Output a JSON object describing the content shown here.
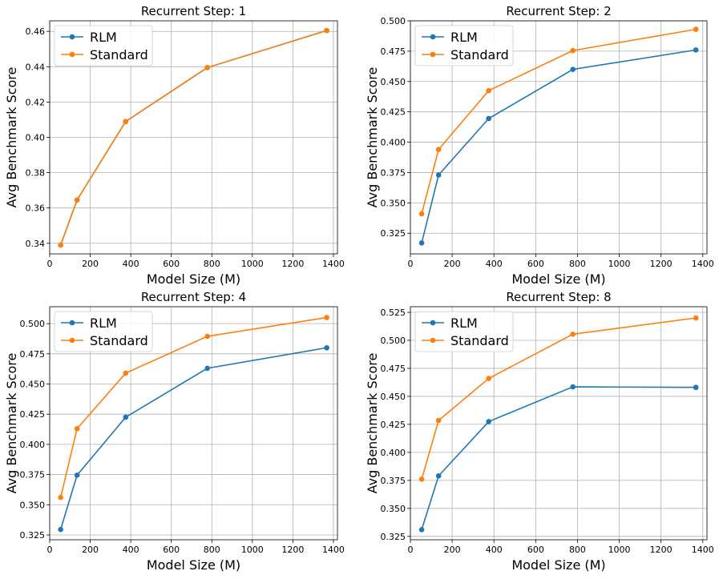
{
  "figure": {
    "ylabel": "Avg Benchmark Score",
    "xlabel": "Model Size (M)"
  },
  "chart_data": [
    {
      "type": "line",
      "title": "Recurrent Step: 1",
      "xlabel": "Model Size (M)",
      "ylabel": "Avg Benchmark Score",
      "x": [
        54,
        135,
        375,
        778,
        1367
      ],
      "xlim": [
        0,
        1420
      ],
      "ylim": [
        0.334,
        0.466
      ],
      "xticks": [
        0,
        200,
        400,
        600,
        800,
        1000,
        1200,
        1400
      ],
      "yticks": [
        0.34,
        0.36,
        0.38,
        0.4,
        0.42,
        0.44,
        0.46
      ],
      "ytick_labels": [
        "0.34",
        "0.36",
        "0.38",
        "0.40",
        "0.42",
        "0.44",
        "0.46"
      ],
      "grid": true,
      "legend": "upper-left",
      "series": [
        {
          "name": "RLM",
          "color": "#1f77b4",
          "values": [
            0.339,
            0.3645,
            0.409,
            0.4395,
            0.4605
          ]
        },
        {
          "name": "Standard",
          "color": "#ff7f0e",
          "values": [
            0.339,
            0.3645,
            0.409,
            0.4395,
            0.4605
          ]
        }
      ]
    },
    {
      "type": "line",
      "title": "Recurrent Step: 2",
      "xlabel": "Model Size (M)",
      "ylabel": "Avg Benchmark Score",
      "x": [
        54,
        135,
        375,
        778,
        1367
      ],
      "xlim": [
        0,
        1420
      ],
      "ylim": [
        0.308,
        0.5
      ],
      "xticks": [
        0,
        200,
        400,
        600,
        800,
        1000,
        1200,
        1400
      ],
      "yticks": [
        0.325,
        0.35,
        0.375,
        0.4,
        0.425,
        0.45,
        0.475,
        0.5
      ],
      "ytick_labels": [
        "0.325",
        "0.350",
        "0.375",
        "0.400",
        "0.425",
        "0.450",
        "0.475",
        "0.500"
      ],
      "grid": true,
      "legend": "upper-left",
      "series": [
        {
          "name": "RLM",
          "color": "#1f77b4",
          "values": [
            0.317,
            0.373,
            0.4195,
            0.46,
            0.476
          ]
        },
        {
          "name": "Standard",
          "color": "#ff7f0e",
          "values": [
            0.341,
            0.394,
            0.4425,
            0.4755,
            0.493
          ]
        }
      ]
    },
    {
      "type": "line",
      "title": "Recurrent Step: 4",
      "xlabel": "Model Size (M)",
      "ylabel": "Avg Benchmark Score",
      "x": [
        54,
        135,
        375,
        778,
        1367
      ],
      "xlim": [
        0,
        1420
      ],
      "ylim": [
        0.321,
        0.514
      ],
      "xticks": [
        0,
        200,
        400,
        600,
        800,
        1000,
        1200,
        1400
      ],
      "yticks": [
        0.325,
        0.35,
        0.375,
        0.4,
        0.425,
        0.45,
        0.475,
        0.5
      ],
      "ytick_labels": [
        "0.325",
        "0.350",
        "0.375",
        "0.400",
        "0.425",
        "0.450",
        "0.475",
        "0.500"
      ],
      "grid": true,
      "legend": "upper-left",
      "series": [
        {
          "name": "RLM",
          "color": "#1f77b4",
          "values": [
            0.3295,
            0.3745,
            0.4225,
            0.463,
            0.48
          ]
        },
        {
          "name": "Standard",
          "color": "#ff7f0e",
          "values": [
            0.356,
            0.413,
            0.459,
            0.4895,
            0.505
          ]
        }
      ]
    },
    {
      "type": "line",
      "title": "Recurrent Step: 8",
      "xlabel": "Model Size (M)",
      "ylabel": "Avg Benchmark Score",
      "x": [
        54,
        135,
        375,
        778,
        1367
      ],
      "xlim": [
        0,
        1420
      ],
      "ylim": [
        0.322,
        0.53
      ],
      "xticks": [
        0,
        200,
        400,
        600,
        800,
        1000,
        1200,
        1400
      ],
      "yticks": [
        0.325,
        0.35,
        0.375,
        0.4,
        0.425,
        0.45,
        0.475,
        0.5,
        0.525
      ],
      "ytick_labels": [
        "0.325",
        "0.350",
        "0.375",
        "0.400",
        "0.425",
        "0.450",
        "0.475",
        "0.500",
        "0.525"
      ],
      "grid": true,
      "legend": "upper-left",
      "series": [
        {
          "name": "RLM",
          "color": "#1f77b4",
          "values": [
            0.331,
            0.379,
            0.4275,
            0.4585,
            0.458
          ]
        },
        {
          "name": "Standard",
          "color": "#ff7f0e",
          "values": [
            0.376,
            0.4285,
            0.466,
            0.5055,
            0.52
          ]
        }
      ]
    }
  ]
}
